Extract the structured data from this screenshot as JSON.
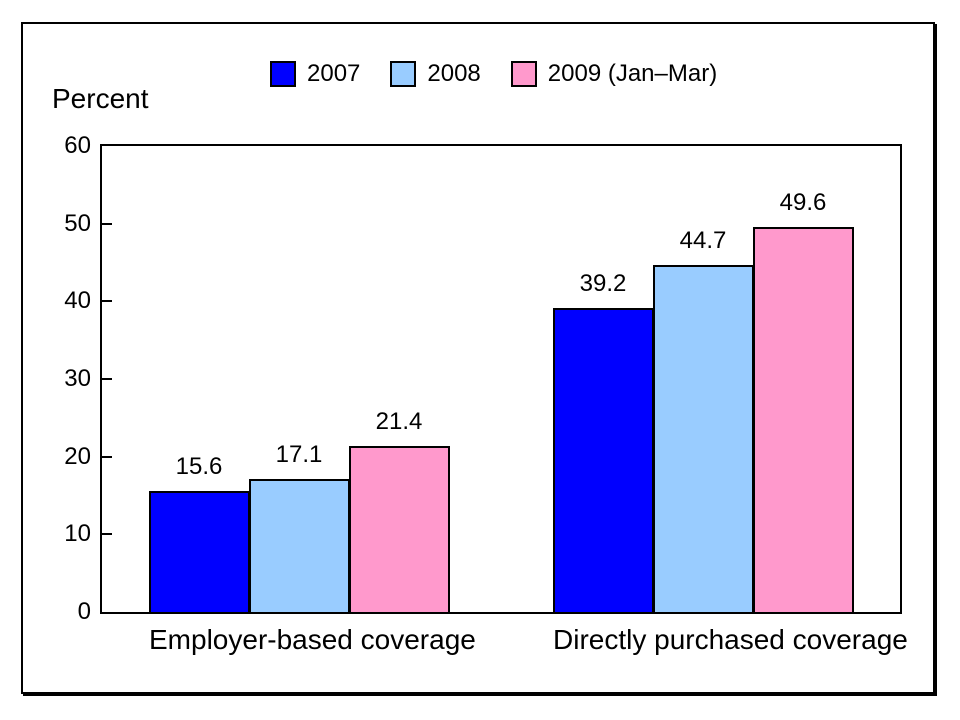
{
  "chart_data": {
    "type": "bar",
    "title": "",
    "ylabel": "Percent",
    "xlabel": "",
    "categories": [
      "Employer-based coverage",
      "Directly purchased coverage"
    ],
    "series": [
      {
        "name": "2007",
        "color": "#0000FF",
        "values": [
          15.6,
          39.2
        ]
      },
      {
        "name": "2008",
        "color": "#99CCFF",
        "values": [
          17.1,
          44.7
        ]
      },
      {
        "name": "2009 (Jan–Mar)",
        "color": "#FF99CC",
        "values": [
          21.4,
          49.6
        ]
      }
    ],
    "ylim": [
      0,
      60
    ],
    "yticks": [
      0,
      10,
      20,
      30,
      40,
      50,
      60
    ],
    "grid": false,
    "legend_position": "top",
    "bar_labels": true,
    "bar_border_color": "#000000",
    "text_color": "#000000"
  }
}
